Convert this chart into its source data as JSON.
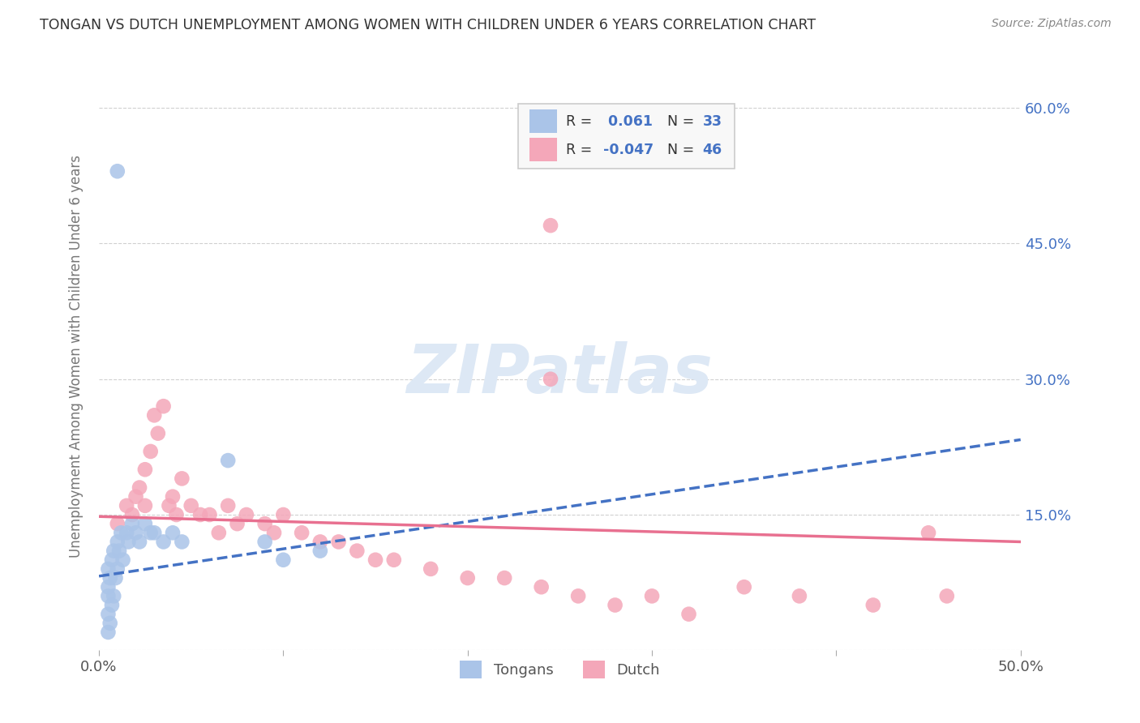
{
  "title": "TONGAN VS DUTCH UNEMPLOYMENT AMONG WOMEN WITH CHILDREN UNDER 6 YEARS CORRELATION CHART",
  "source": "Source: ZipAtlas.com",
  "ylabel": "Unemployment Among Women with Children Under 6 years",
  "xlim": [
    0.0,
    0.5
  ],
  "ylim": [
    0.0,
    0.65
  ],
  "xticks": [
    0.0,
    0.1,
    0.2,
    0.3,
    0.4,
    0.5
  ],
  "xtick_labels": [
    "0.0%",
    "",
    "",
    "",
    "",
    "50.0%"
  ],
  "yticks": [
    0.0,
    0.15,
    0.3,
    0.45,
    0.6
  ],
  "ytick_labels_right": [
    "",
    "15.0%",
    "30.0%",
    "45.0%",
    "60.0%"
  ],
  "grid_color": "#d0d0d0",
  "background_color": "#ffffff",
  "tongan_color": "#aac4e8",
  "dutch_color": "#f4a7b9",
  "tongan_line_color": "#4472c4",
  "dutch_line_color": "#e87090",
  "watermark": "ZIPatlas",
  "watermark_color": "#dde8f5",
  "legend_label_tongan": "Tongans",
  "legend_label_dutch": "Dutch",
  "tongan_x": [
    0.005,
    0.005,
    0.005,
    0.005,
    0.005,
    0.006,
    0.006,
    0.007,
    0.007,
    0.008,
    0.008,
    0.009,
    0.01,
    0.01,
    0.011,
    0.012,
    0.013,
    0.015,
    0.016,
    0.018,
    0.02,
    0.022,
    0.025,
    0.028,
    0.03,
    0.035,
    0.04,
    0.045,
    0.07,
    0.09,
    0.1,
    0.12,
    0.01
  ],
  "tongan_y": [
    0.02,
    0.04,
    0.06,
    0.07,
    0.09,
    0.03,
    0.08,
    0.05,
    0.1,
    0.06,
    0.11,
    0.08,
    0.09,
    0.12,
    0.11,
    0.13,
    0.1,
    0.13,
    0.12,
    0.14,
    0.13,
    0.12,
    0.14,
    0.13,
    0.13,
    0.12,
    0.13,
    0.12,
    0.21,
    0.12,
    0.1,
    0.11,
    0.53
  ],
  "dutch_x": [
    0.01,
    0.015,
    0.018,
    0.02,
    0.022,
    0.025,
    0.025,
    0.028,
    0.03,
    0.032,
    0.035,
    0.038,
    0.04,
    0.042,
    0.045,
    0.05,
    0.055,
    0.06,
    0.065,
    0.07,
    0.075,
    0.08,
    0.09,
    0.095,
    0.1,
    0.11,
    0.12,
    0.13,
    0.14,
    0.15,
    0.16,
    0.18,
    0.2,
    0.22,
    0.24,
    0.26,
    0.28,
    0.3,
    0.32,
    0.35,
    0.38,
    0.42,
    0.45,
    0.46,
    0.245,
    0.245
  ],
  "dutch_y": [
    0.14,
    0.16,
    0.15,
    0.17,
    0.18,
    0.2,
    0.16,
    0.22,
    0.26,
    0.24,
    0.27,
    0.16,
    0.17,
    0.15,
    0.19,
    0.16,
    0.15,
    0.15,
    0.13,
    0.16,
    0.14,
    0.15,
    0.14,
    0.13,
    0.15,
    0.13,
    0.12,
    0.12,
    0.11,
    0.1,
    0.1,
    0.09,
    0.08,
    0.08,
    0.07,
    0.06,
    0.05,
    0.06,
    0.04,
    0.07,
    0.06,
    0.05,
    0.13,
    0.06,
    0.47,
    0.3
  ],
  "tongan_line_x0": 0.0,
  "tongan_line_x1": 0.5,
  "tongan_line_y0": 0.082,
  "tongan_line_y1": 0.233,
  "dutch_line_x0": 0.0,
  "dutch_line_x1": 0.5,
  "dutch_line_y0": 0.148,
  "dutch_line_y1": 0.12
}
